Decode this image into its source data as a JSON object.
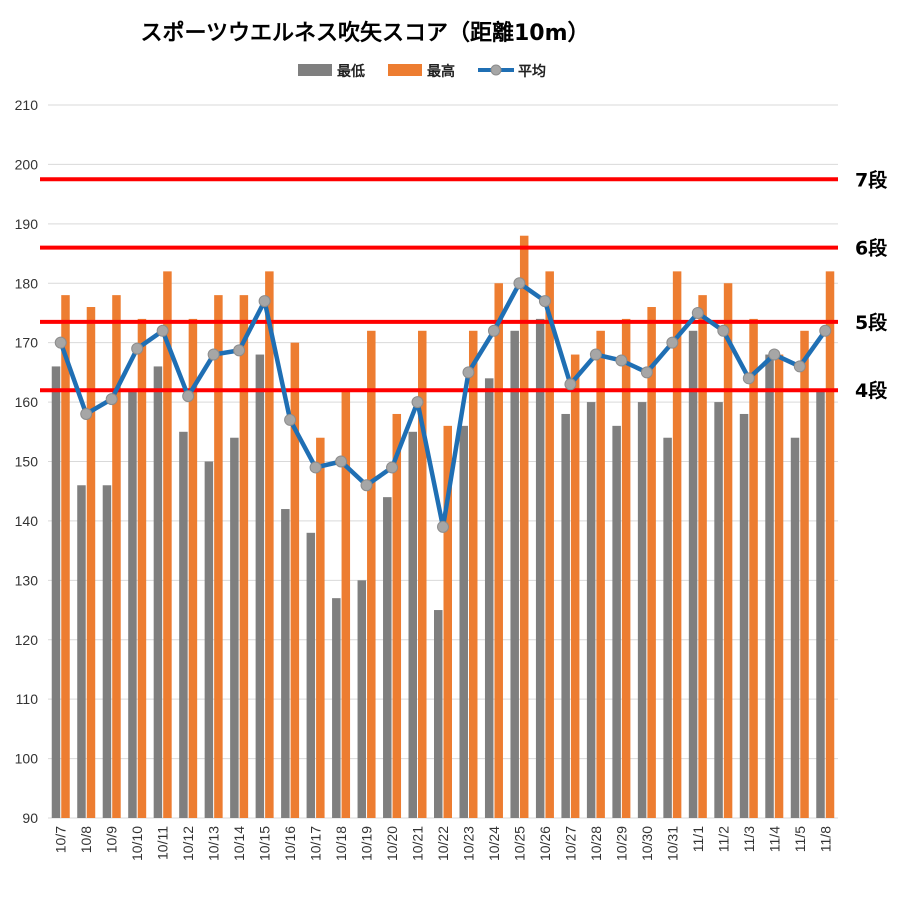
{
  "chart_data": {
    "type": "bar",
    "title": "スポーツウエルネス吹矢スコア（距離10m）",
    "ylim": [
      90,
      210
    ],
    "yticks": [
      90,
      100,
      110,
      120,
      130,
      140,
      150,
      160,
      170,
      180,
      190,
      200,
      210
    ],
    "grid": true,
    "legend_position": "top",
    "categories": [
      "10/7",
      "10/8",
      "10/9",
      "10/10",
      "10/11",
      "10/12",
      "10/13",
      "10/14",
      "10/15",
      "10/16",
      "10/17",
      "10/18",
      "10/19",
      "10/20",
      "10/21",
      "10/22",
      "10/23",
      "10/24",
      "10/25",
      "10/26",
      "10/27",
      "10/28",
      "10/29",
      "10/30",
      "10/31",
      "11/1",
      "11/2",
      "11/3",
      "11/4",
      "11/5",
      "11/8"
    ],
    "series": [
      {
        "name": "最低",
        "type": "bar",
        "color": "#7f7f7f",
        "values": [
          166,
          146,
          146,
          162,
          166,
          155,
          150,
          154,
          168,
          142,
          138,
          127,
          130,
          144,
          155,
          125,
          156,
          164,
          172,
          174,
          158,
          160,
          156,
          160,
          154,
          172,
          160,
          158,
          168,
          154,
          162
        ]
      },
      {
        "name": "最高",
        "type": "bar",
        "color": "#ed7d31",
        "values": [
          178,
          176,
          178,
          174,
          182,
          174,
          178,
          178,
          182,
          170,
          154,
          162,
          172,
          158,
          172,
          156,
          172,
          180,
          188,
          182,
          168,
          172,
          174,
          176,
          182,
          178,
          180,
          174,
          168,
          172,
          182
        ]
      },
      {
        "name": "平均",
        "type": "line",
        "color": "#1f6fb4",
        "marker_color": "#a6a6a6",
        "values": [
          170.0,
          158.0,
          160.5,
          169.0,
          172.0,
          161.0,
          168.0,
          168.7,
          177.0,
          157.0,
          149.0,
          150.0,
          146.0,
          149.0,
          160.0,
          139.0,
          165.0,
          172.0,
          180.0,
          177.0,
          163.0,
          168.0,
          167.0,
          165.0,
          170.0,
          175.0,
          172.0,
          164.0,
          168.0,
          166.0,
          172.0
        ]
      }
    ],
    "reference_lines": [
      {
        "label": "7段",
        "value": 197.5,
        "color": "#ff0000"
      },
      {
        "label": "6段",
        "value": 186,
        "color": "#ff0000"
      },
      {
        "label": "5段",
        "value": 173.5,
        "color": "#ff0000"
      },
      {
        "label": "4段",
        "value": 162,
        "color": "#ff0000"
      }
    ]
  }
}
